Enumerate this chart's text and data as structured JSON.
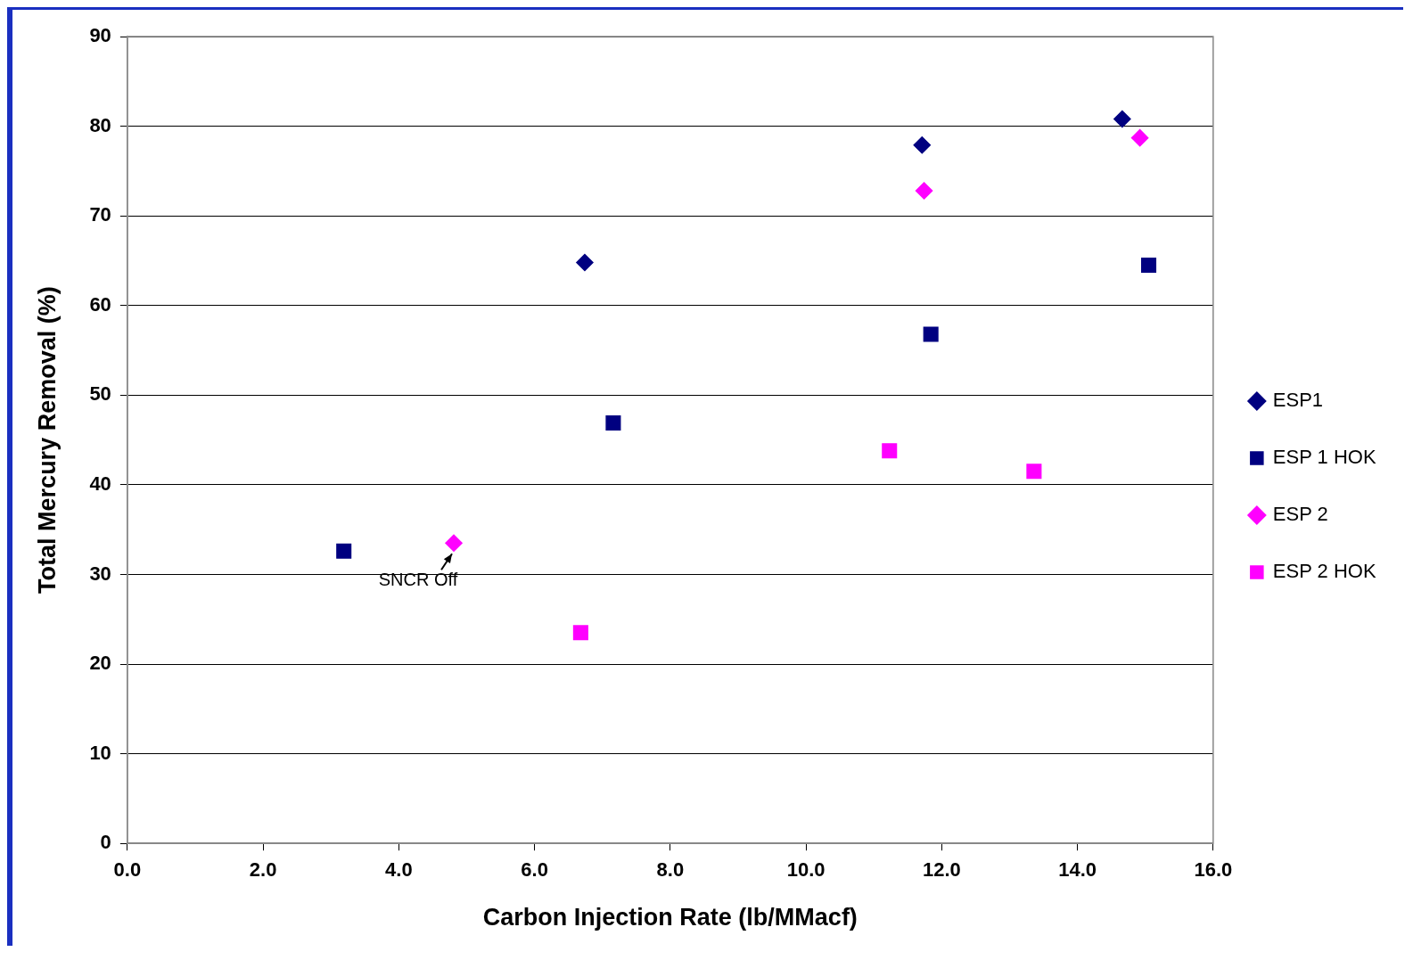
{
  "chart_data": {
    "type": "scatter",
    "xlabel": "Carbon Injection Rate (lb/MMacf)",
    "ylabel": "Total Mercury Removal (%)",
    "xlim": [
      0,
      16
    ],
    "xticks": [
      {
        "value": 0,
        "label": "0.0"
      },
      {
        "value": 2,
        "label": "2.0"
      },
      {
        "value": 4,
        "label": "4.0"
      },
      {
        "value": 6,
        "label": "6.0"
      },
      {
        "value": 8,
        "label": "8.0"
      },
      {
        "value": 10,
        "label": "10.0"
      },
      {
        "value": 12,
        "label": "12.0"
      },
      {
        "value": 14,
        "label": "14.0"
      },
      {
        "value": 16,
        "label": "16.0"
      }
    ],
    "ylim": [
      0,
      90
    ],
    "yticks": [
      0,
      10,
      20,
      30,
      40,
      50,
      60,
      70,
      80,
      90
    ],
    "grid": "y",
    "legend": "right",
    "annotations": [
      {
        "text": "SNCR Off",
        "x": 4.81,
        "y": 33.5
      }
    ],
    "series": [
      {
        "name": "ESP1",
        "color": "#000080",
        "marker": "diamond",
        "x": [
          6.74,
          11.71,
          14.66
        ],
        "values": [
          64.8,
          77.9,
          80.8
        ]
      },
      {
        "name": "ESP 1 HOK",
        "color": "#000080",
        "marker": "square",
        "x": [
          3.19,
          7.16,
          11.84,
          15.05
        ],
        "values": [
          32.6,
          46.9,
          56.8,
          64.5
        ]
      },
      {
        "name": "ESP 2",
        "color": "#ff00ff",
        "marker": "diamond",
        "x": [
          4.81,
          11.74,
          14.92
        ],
        "values": [
          33.5,
          72.8,
          78.7
        ]
      },
      {
        "name": "ESP 2 HOK",
        "color": "#ff00ff",
        "marker": "square",
        "x": [
          6.68,
          11.23,
          13.36
        ],
        "values": [
          23.5,
          43.8,
          41.5
        ]
      }
    ]
  }
}
